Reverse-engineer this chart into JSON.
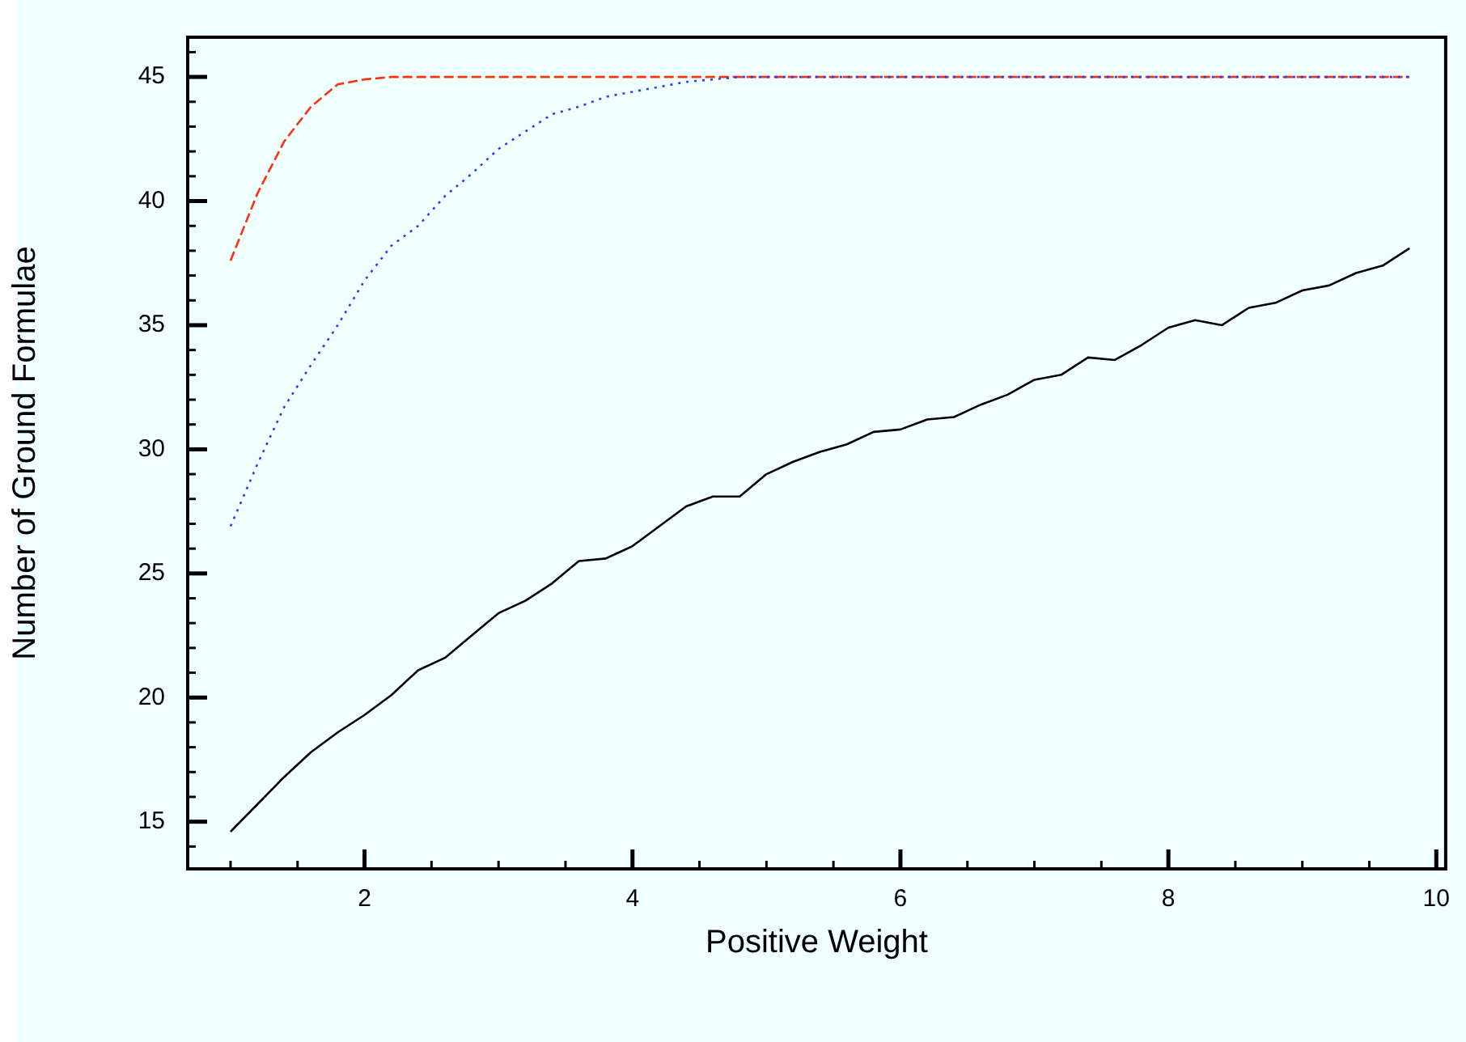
{
  "chart_data": {
    "type": "line",
    "xlabel": "Positive Weight",
    "ylabel": "Number of Ground Formulae",
    "x": [
      1.0,
      1.2,
      1.4,
      1.6,
      1.8,
      2.0,
      2.2,
      2.4,
      2.6,
      2.8,
      3.0,
      3.2,
      3.4,
      3.6,
      3.8,
      4.0,
      4.2,
      4.4,
      4.6,
      4.8,
      5.0,
      5.2,
      5.4,
      5.6,
      5.8,
      6.0,
      6.2,
      6.4,
      6.6,
      6.8,
      7.0,
      7.2,
      7.4,
      7.6,
      7.8,
      8.0,
      8.2,
      8.4,
      8.6,
      8.8,
      9.0,
      9.2,
      9.4,
      9.6,
      9.8
    ],
    "xlim": [
      0.68,
      10.07
    ],
    "ylim": [
      13.1,
      46.6
    ],
    "xticks": [
      2,
      4,
      6,
      8,
      10
    ],
    "yticks": [
      15,
      20,
      25,
      30,
      35,
      40,
      45
    ],
    "series": [
      {
        "color": "#000000",
        "line_style": "solid",
        "values": [
          14.6,
          15.7,
          16.8,
          17.8,
          18.6,
          19.3,
          20.1,
          21.1,
          21.6,
          22.5,
          23.4,
          23.9,
          24.6,
          25.5,
          25.6,
          26.1,
          26.9,
          27.7,
          28.1,
          28.1,
          29.0,
          29.5,
          29.9,
          30.2,
          30.7,
          30.8,
          31.2,
          31.3,
          31.8,
          32.2,
          32.8,
          33.0,
          33.7,
          33.6,
          34.2,
          34.9,
          35.2,
          35.0,
          35.7,
          35.9,
          36.4,
          36.6,
          37.1,
          37.4,
          38.1
        ]
      },
      {
        "color": "#2040ff",
        "line_style": "dotted",
        "values": [
          26.9,
          29.4,
          31.7,
          33.4,
          35.0,
          36.8,
          38.2,
          39.0,
          40.2,
          41.1,
          42.1,
          42.8,
          43.5,
          43.8,
          44.2,
          44.4,
          44.6,
          44.8,
          44.9,
          45,
          45,
          45,
          45,
          45,
          45,
          45,
          45,
          45,
          45,
          45,
          45,
          45,
          45,
          45,
          45,
          45,
          45,
          45,
          45,
          45,
          45,
          45,
          45,
          45,
          45
        ]
      },
      {
        "color": "#ff3010",
        "line_style": "dashed",
        "values": [
          37.6,
          40.3,
          42.4,
          43.8,
          44.7,
          44.9,
          45,
          45,
          45,
          45,
          45,
          45,
          45,
          45,
          45,
          45,
          45,
          45,
          45,
          45,
          45,
          45,
          45,
          45,
          45,
          45,
          45,
          45,
          45,
          45,
          45,
          45,
          45,
          45,
          45,
          45,
          45,
          45,
          45,
          45,
          45,
          45,
          45,
          45,
          45
        ]
      }
    ]
  }
}
